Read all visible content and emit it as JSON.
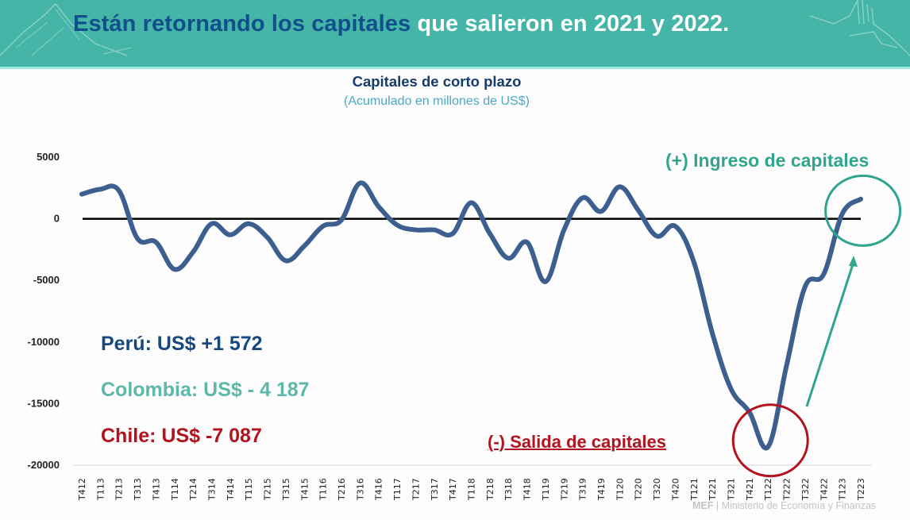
{
  "banner": {
    "title_part1": "Están retornando los capitales",
    "title_part2": "que salieron en 2021 y 2022."
  },
  "chart_data": {
    "type": "line",
    "title": "Capitales de corto plazo",
    "subtitle": "(Acumulado en millones de US$)",
    "xlabel": "",
    "ylabel": "",
    "ylim": [
      -20000,
      5000
    ],
    "yticks": [
      5000,
      0,
      -5000,
      -10000,
      -15000,
      -20000
    ],
    "ytick_labels": [
      "5000",
      "0",
      "-5000",
      "-10000",
      "-15000",
      "-20000"
    ],
    "grid": false,
    "legend": "none",
    "categories": [
      "T412",
      "T113",
      "T213",
      "T313",
      "T413",
      "T114",
      "T214",
      "T314",
      "T414",
      "T115",
      "T215",
      "T315",
      "T415",
      "T116",
      "T216",
      "T316",
      "T416",
      "T117",
      "T217",
      "T317",
      "T417",
      "T118",
      "T218",
      "T318",
      "T418",
      "T119",
      "T219",
      "T319",
      "T419",
      "T120",
      "T220",
      "T320",
      "T420",
      "T121",
      "T221",
      "T321",
      "T421",
      "T122",
      "T222",
      "T322",
      "T422",
      "T123",
      "T223"
    ],
    "series": [
      {
        "name": "Capitales de corto plazo",
        "color": "#3d5f8f",
        "values": [
          2000,
          2400,
          2300,
          -1600,
          -1900,
          -4100,
          -2700,
          -400,
          -1300,
          -400,
          -1500,
          -3400,
          -2200,
          -600,
          -100,
          2900,
          1000,
          -500,
          -900,
          -900,
          -1200,
          1300,
          -1200,
          -3200,
          -1900,
          -5100,
          -900,
          1700,
          600,
          2600,
          700,
          -1400,
          -600,
          -3500,
          -9300,
          -13800,
          -15700,
          -18500,
          -11900,
          -5500,
          -4500,
          400,
          1600
        ]
      }
    ],
    "annotations": {
      "peru": "Perú: US$ +1 572",
      "colombia": "Colombia: US$ - 4 187",
      "chile": "Chile: US$ -7 087",
      "outflow": "(-) Salida de capitales",
      "inflow": "(+) Ingreso de capitales",
      "outflow_marker_category": "T122",
      "inflow_marker_category": "T123"
    }
  },
  "colors": {
    "banner": "#45b5a7",
    "title_dark": "#114f8c",
    "line": "#3d5f8f",
    "peru": "#15487e",
    "colombia": "#5cb8a8",
    "chile": "#b3121f",
    "inflow": "#2fa58e",
    "outflow": "#b3121f"
  },
  "footer": {
    "org_short": "MEF",
    "separator": "|",
    "org_full": "Ministerio de Economía y Finanzas"
  }
}
